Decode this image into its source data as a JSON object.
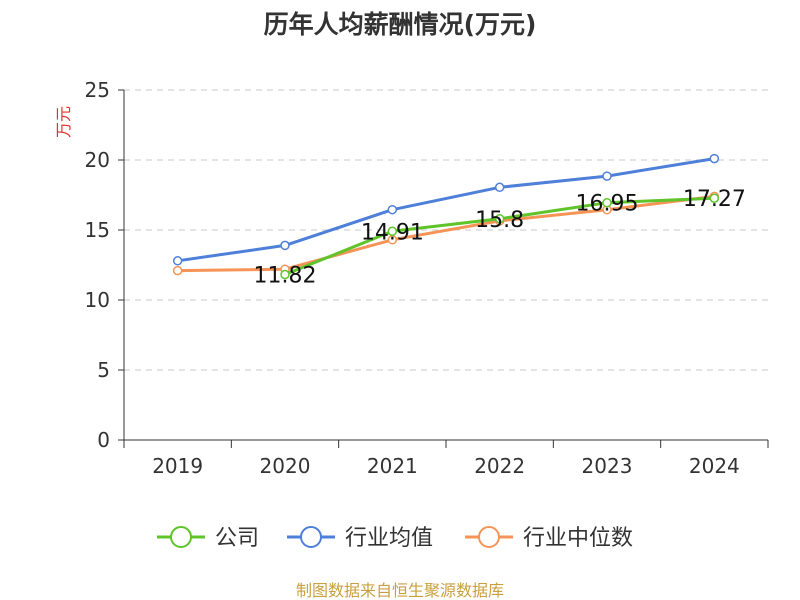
{
  "chart_data": {
    "type": "line",
    "title": "历年人均薪酬情况(万元)",
    "xlabel": "",
    "ylabel": "万元",
    "ylim": [
      0,
      25
    ],
    "yticks": [
      0,
      5,
      10,
      15,
      20,
      25
    ],
    "categories": [
      "2019",
      "2020",
      "2021",
      "2022",
      "2023",
      "2024"
    ],
    "series": [
      {
        "name": "公司",
        "color": "#5ec42a",
        "values": [
          null,
          11.82,
          14.91,
          15.8,
          16.95,
          17.27
        ],
        "labels": [
          "",
          "11.82",
          "14.91",
          "15.8",
          "16.95",
          "17.27"
        ]
      },
      {
        "name": "行业均值",
        "color": "#4e7fd9",
        "values": [
          12.8,
          13.9,
          16.45,
          18.05,
          18.85,
          20.1
        ]
      },
      {
        "name": "行业中位数",
        "color": "#f59456",
        "values": [
          12.1,
          12.2,
          14.3,
          15.65,
          16.45,
          17.4
        ]
      }
    ],
    "grid": true,
    "legend": "bottom"
  },
  "source": "制图数据来自恒生聚源数据库"
}
